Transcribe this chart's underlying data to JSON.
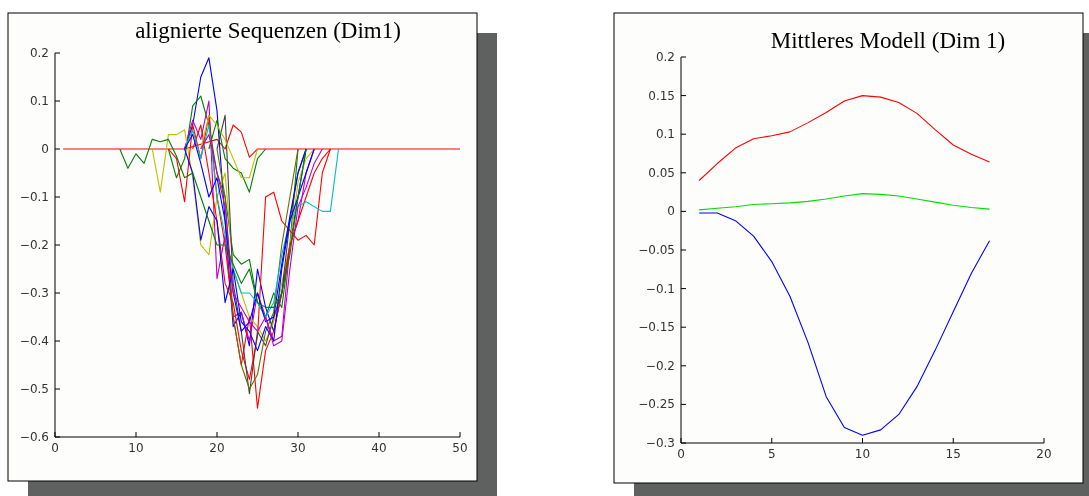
{
  "chart_data": [
    {
      "type": "line",
      "title": "alignierte Sequenzen (Dim1)",
      "xlim": [
        0,
        50
      ],
      "xticks": [
        0,
        10,
        20,
        30,
        40,
        50
      ],
      "ylim": [
        -0.6,
        0.2
      ],
      "yticks": [
        -0.6,
        -0.5,
        -0.4,
        -0.3,
        -0.2,
        -0.1,
        0,
        0.1,
        0.2
      ],
      "series": [
        {
          "color": "#ff0000",
          "x": [
            1,
            16,
            18,
            20,
            21,
            22,
            23,
            24,
            25,
            50
          ],
          "values": [
            0,
            0,
            0.01,
            0.02,
            0,
            0.05,
            0.035,
            -0.017,
            0,
            0
          ]
        },
        {
          "color": "#0000ff",
          "x": [
            16,
            17,
            18,
            19,
            20,
            21,
            22,
            23,
            24,
            25,
            26,
            27,
            28,
            29,
            30,
            31
          ],
          "values": [
            0,
            0.05,
            0.15,
            0.19,
            0.08,
            -0.15,
            -0.37,
            -0.34,
            -0.41,
            -0.25,
            -0.33,
            -0.38,
            -0.3,
            -0.2,
            -0.1,
            0
          ]
        },
        {
          "color": "#008000",
          "x": [
            14,
            15,
            16,
            17,
            18,
            19,
            20,
            21,
            22,
            23,
            24,
            25,
            26,
            27,
            28,
            29,
            30
          ],
          "values": [
            0,
            -0.06,
            -0.02,
            0.09,
            0.11,
            0.05,
            -0.05,
            -0.1,
            -0.22,
            -0.24,
            -0.23,
            -0.32,
            -0.35,
            -0.3,
            -0.33,
            -0.2,
            0
          ]
        },
        {
          "color": "#bf00bf",
          "x": [
            16,
            17,
            18,
            19,
            20,
            21,
            22,
            23,
            24,
            25,
            26,
            27,
            28,
            29,
            30,
            31,
            32
          ],
          "values": [
            0,
            0.06,
            0.02,
            0.1,
            -0.27,
            -0.18,
            -0.35,
            -0.34,
            -0.4,
            -0.3,
            -0.35,
            -0.4,
            -0.39,
            -0.2,
            -0.15,
            -0.05,
            0
          ]
        },
        {
          "color": "#bfbf00",
          "x": [
            12,
            13,
            14,
            15,
            16,
            17,
            18,
            19,
            20,
            21,
            22,
            23,
            24,
            25,
            26,
            27,
            28,
            29,
            30,
            31,
            32
          ],
          "values": [
            0,
            -0.09,
            0.03,
            0.03,
            0.04,
            -0.06,
            -0.2,
            -0.22,
            -0.1,
            -0.05,
            -0.25,
            -0.3,
            -0.35,
            -0.37,
            -0.4,
            -0.36,
            -0.28,
            -0.2,
            -0.07,
            -0.02,
            0
          ]
        },
        {
          "color": "#ff0000",
          "x": [
            14,
            15,
            16,
            17,
            18,
            19,
            20,
            21,
            22,
            23,
            24,
            25,
            26,
            27,
            28,
            29,
            30,
            31,
            32,
            33,
            34
          ],
          "values": [
            0,
            -0.02,
            -0.11,
            0.05,
            -0.02,
            0.07,
            -0.1,
            -0.2,
            -0.35,
            -0.45,
            -0.35,
            -0.54,
            -0.42,
            -0.38,
            -0.3,
            -0.2,
            -0.15,
            -0.1,
            -0.05,
            -0.02,
            0
          ]
        },
        {
          "color": "#ff0000",
          "x": [
            17,
            18,
            19,
            20,
            21,
            22,
            23,
            24,
            25,
            26,
            27,
            28,
            29,
            30,
            31,
            32,
            33,
            34
          ],
          "values": [
            0,
            0.05,
            -0.05,
            -0.15,
            -0.28,
            -0.32,
            -0.42,
            -0.48,
            -0.39,
            -0.1,
            -0.09,
            -0.15,
            -0.17,
            -0.19,
            -0.18,
            -0.2,
            -0.05,
            0
          ]
        },
        {
          "color": "#404040",
          "x": [
            20,
            21,
            22,
            23,
            24,
            25,
            26,
            27,
            28,
            29,
            30,
            31
          ],
          "values": [
            0,
            0.07,
            -0.28,
            -0.38,
            -0.51,
            -0.38,
            -0.41,
            -0.35,
            -0.3,
            -0.15,
            -0.05,
            0
          ]
        },
        {
          "color": "#6b6b00",
          "x": [
            20,
            21,
            22,
            23,
            24,
            25,
            26,
            27,
            28,
            29,
            30
          ],
          "values": [
            0,
            -0.1,
            -0.35,
            -0.45,
            -0.5,
            -0.47,
            -0.38,
            -0.34,
            -0.2,
            -0.1,
            0
          ]
        },
        {
          "color": "#00bfbf",
          "x": [
            16,
            17,
            18,
            19,
            20,
            21,
            22,
            23,
            24,
            25,
            26,
            27,
            28,
            29,
            30,
            31,
            32,
            33,
            34,
            35
          ],
          "values": [
            0,
            0.04,
            -0.02,
            0.05,
            -0.1,
            -0.18,
            -0.25,
            -0.3,
            -0.3,
            -0.32,
            -0.35,
            -0.32,
            -0.22,
            -0.15,
            -0.12,
            -0.11,
            -0.12,
            -0.13,
            -0.13,
            0
          ]
        },
        {
          "color": "#008000",
          "x": [
            19,
            20,
            21,
            22,
            23,
            24,
            25,
            26
          ],
          "values": [
            0,
            0.06,
            -0.02,
            -0.04,
            -0.05,
            -0.09,
            -0.02,
            0
          ]
        },
        {
          "color": "#bfbf00",
          "x": [
            18,
            19,
            20,
            21,
            22,
            23,
            24,
            25
          ],
          "values": [
            0,
            0.07,
            0.05,
            0.02,
            -0.02,
            -0.06,
            -0.06,
            0
          ]
        },
        {
          "color": "#0000ff",
          "x": [
            16,
            17,
            18,
            19,
            20,
            21,
            22,
            23,
            24,
            25,
            26,
            27,
            28,
            29,
            30,
            31
          ],
          "values": [
            0,
            0.03,
            -0.03,
            -0.1,
            -0.06,
            -0.15,
            -0.3,
            -0.38,
            -0.36,
            -0.3,
            -0.36,
            -0.35,
            -0.24,
            -0.14,
            -0.05,
            0
          ]
        },
        {
          "color": "#0000ff",
          "x": [
            16,
            17,
            18,
            19,
            20,
            21,
            22,
            23,
            24,
            25,
            26,
            27,
            28,
            29,
            30,
            31,
            32
          ],
          "values": [
            0,
            -0.05,
            -0.19,
            -0.12,
            -0.15,
            -0.32,
            -0.25,
            -0.36,
            -0.38,
            -0.42,
            -0.37,
            -0.4,
            -0.25,
            -0.15,
            -0.1,
            -0.05,
            0
          ]
        },
        {
          "color": "#bf00bf",
          "x": [
            18,
            19,
            20,
            21,
            22,
            23,
            24,
            25,
            26,
            27,
            28,
            29,
            30,
            31,
            32,
            33
          ],
          "values": [
            0,
            0.03,
            -0.05,
            -0.12,
            -0.3,
            -0.33,
            -0.36,
            -0.38,
            -0.35,
            -0.41,
            -0.4,
            -0.25,
            -0.12,
            -0.08,
            -0.03,
            0
          ]
        },
        {
          "color": "#008000",
          "x": [
            8,
            9,
            10,
            11,
            12,
            13,
            14,
            15,
            16,
            17,
            18,
            19,
            20,
            21,
            22,
            23,
            24,
            25,
            26,
            27,
            28,
            29,
            30,
            31
          ],
          "values": [
            0,
            -0.04,
            -0.01,
            -0.03,
            0.02,
            0.015,
            0.02,
            -0.015,
            -0.06,
            -0.05,
            -0.1,
            -0.15,
            -0.2,
            -0.2,
            -0.24,
            -0.28,
            -0.25,
            -0.32,
            -0.33,
            -0.33,
            -0.3,
            -0.22,
            -0.1,
            0
          ]
        }
      ]
    },
    {
      "type": "line",
      "title": "Mittleres Modell (Dim 1)",
      "x": [
        1,
        2,
        3,
        4,
        5,
        6,
        7,
        8,
        9,
        10,
        11,
        12,
        13,
        14,
        15,
        16,
        17
      ],
      "xlim": [
        0,
        20
      ],
      "xticks": [
        0,
        5,
        10,
        15,
        20
      ],
      "ylim": [
        -0.3,
        0.2
      ],
      "yticks": [
        -0.3,
        -0.25,
        -0.2,
        -0.15,
        -0.1,
        -0.05,
        0,
        0.05,
        0.1,
        0.15,
        0.2
      ],
      "series": [
        {
          "color": "#ff0000",
          "values": [
            0.04,
            0.062,
            0.082,
            0.094,
            0.098,
            0.103,
            0.115,
            0.128,
            0.143,
            0.15,
            0.148,
            0.141,
            0.127,
            0.106,
            0.086,
            0.074,
            0.064
          ]
        },
        {
          "color": "#00dd00",
          "values": [
            0.002,
            0.004,
            0.006,
            0.009,
            0.01,
            0.011,
            0.013,
            0.016,
            0.02,
            0.023,
            0.022,
            0.02,
            0.016,
            0.012,
            0.008,
            0.005,
            0.003
          ]
        },
        {
          "color": "#0000ff",
          "values": [
            -0.002,
            -0.002,
            -0.012,
            -0.032,
            -0.065,
            -0.11,
            -0.17,
            -0.24,
            -0.28,
            -0.29,
            -0.283,
            -0.263,
            -0.227,
            -0.18,
            -0.13,
            -0.08,
            -0.038
          ]
        }
      ]
    }
  ]
}
